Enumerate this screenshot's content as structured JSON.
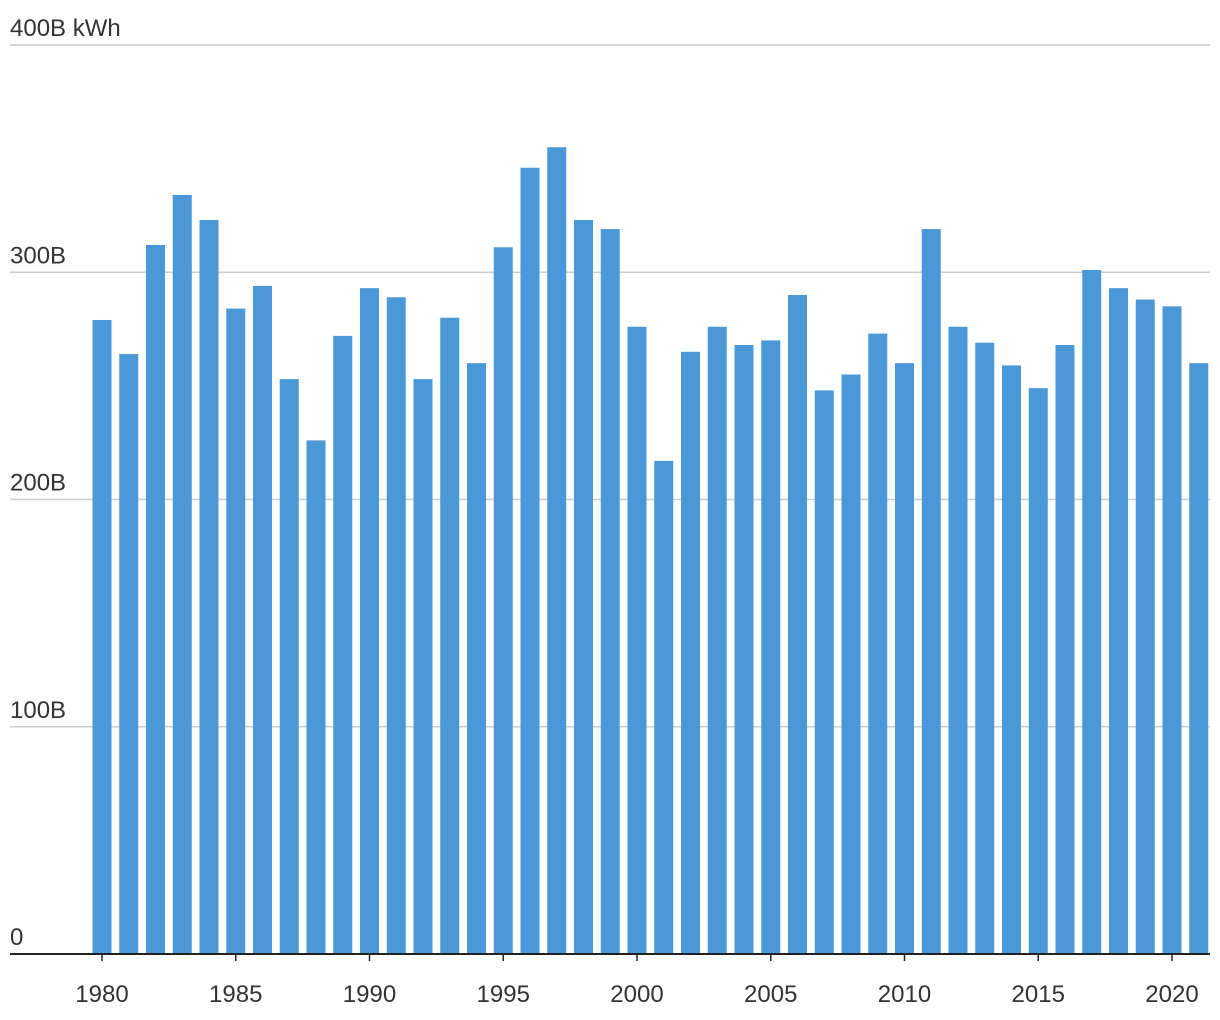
{
  "chart_data": {
    "type": "bar",
    "title": "",
    "xlabel": "",
    "ylabel": "",
    "y_unit_label": "400B kWh",
    "ylim": [
      0,
      400
    ],
    "yticks": [
      {
        "value": 0,
        "label": "0"
      },
      {
        "value": 100,
        "label": "100B"
      },
      {
        "value": 200,
        "label": "200B"
      },
      {
        "value": 300,
        "label": "300B"
      },
      {
        "value": 400,
        "label": "400B kWh"
      }
    ],
    "xticks": [
      "1980",
      "1985",
      "1990",
      "1995",
      "2000",
      "2005",
      "2010",
      "2015",
      "2020"
    ],
    "grid": true,
    "bar_color": "#4a98d8",
    "categories": [
      "1980",
      "1981",
      "1982",
      "1983",
      "1984",
      "1985",
      "1986",
      "1987",
      "1988",
      "1989",
      "1990",
      "1991",
      "1992",
      "1993",
      "1994",
      "1995",
      "1996",
      "1997",
      "1998",
      "1999",
      "2000",
      "2001",
      "2002",
      "2003",
      "2004",
      "2005",
      "2006",
      "2007",
      "2008",
      "2009",
      "2010",
      "2011",
      "2012",
      "2013",
      "2014",
      "2015",
      "2016",
      "2017",
      "2018",
      "2019",
      "2020",
      "2021"
    ],
    "values": [
      279,
      264,
      312,
      334,
      323,
      284,
      294,
      253,
      226,
      272,
      293,
      289,
      253,
      280,
      260,
      311,
      346,
      355,
      323,
      319,
      276,
      217,
      265,
      276,
      268,
      270,
      290,
      248,
      255,
      273,
      260,
      319,
      276,
      269,
      259,
      249,
      268,
      301,
      293,
      288,
      285,
      260
    ]
  }
}
